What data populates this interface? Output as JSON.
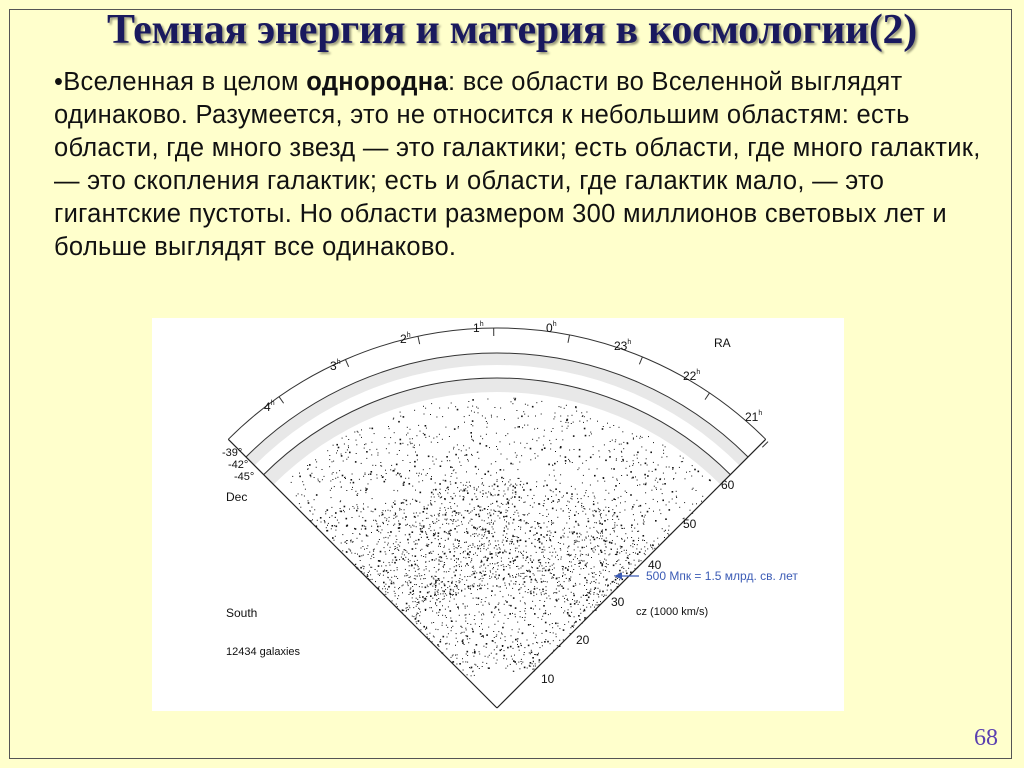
{
  "slide": {
    "title": "Темная энергия и материя в космологии(2)",
    "body": {
      "bullet": "•",
      "prefix": "Вселенная в целом ",
      "bold": "однородна",
      "suffix": ": все области во Вселенной выглядят одинаково. Разумеется, это не относится к небольшим областям: есть области, где много звезд — это галактики; есть области, где много галактик, — это скопления галактик; есть и области, где галактик мало, — это гигантские пустоты. Но области размером 300 миллионов световых лет и больше выглядят все одинаково."
    },
    "page_number": "68"
  },
  "figure": {
    "ra_axis_label": "RA",
    "ra_ticks": [
      {
        "hour": "4",
        "sup": "h"
      },
      {
        "hour": "3",
        "sup": "h"
      },
      {
        "hour": "2",
        "sup": "h"
      },
      {
        "hour": "1",
        "sup": "h"
      },
      {
        "hour": "0",
        "sup": "h"
      },
      {
        "hour": "23",
        "sup": "h"
      },
      {
        "hour": "22",
        "sup": "h"
      },
      {
        "hour": "21",
        "sup": "h"
      }
    ],
    "dec_labels": [
      "-39°",
      "-42°",
      "-45°"
    ],
    "dec_axis_label": "Dec",
    "cz_ticks": [
      "60",
      "50",
      "40",
      "30",
      "20",
      "10"
    ],
    "cz_axis_label": "cz (1000 km/s)",
    "annotation": "500 Мпк = 1.5 млрд. св. лет",
    "annotation_color": "#3b5bb5",
    "region_label": "South",
    "count_label": "12434 galaxies"
  }
}
